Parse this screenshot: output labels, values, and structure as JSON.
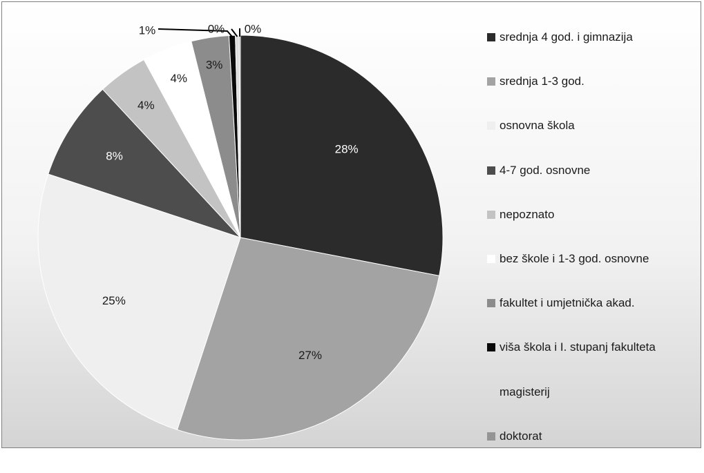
{
  "chart_data": {
    "type": "pie",
    "slices": [
      {
        "name": "srednja 4 god. i gimnazija",
        "value": 28,
        "label": "28%",
        "color": "#2b2b2b",
        "label_color": "#ffffff"
      },
      {
        "name": "srednja 1-3 god.",
        "value": 27,
        "label": "27%",
        "color": "#a3a3a3",
        "label_color": "#1a1a1a"
      },
      {
        "name": "osnovna škola",
        "value": 25,
        "label": "25%",
        "color": "#efefef",
        "label_color": "#1a1a1a"
      },
      {
        "name": "4-7 god. osnovne",
        "value": 8,
        "label": "8%",
        "color": "#4d4d4d",
        "label_color": "#ffffff"
      },
      {
        "name": "nepoznato",
        "value": 4,
        "label": "4%",
        "color": "#c3c3c3",
        "label_color": "#1a1a1a"
      },
      {
        "name": "bez škole i 1-3 god. osnovne",
        "value": 4,
        "label": "4%",
        "color": "#ffffff",
        "label_color": "#1a1a1a"
      },
      {
        "name": "fakultet i umjetnička akad.",
        "value": 3,
        "label": "3%",
        "color": "#8c8c8c",
        "label_color": "#1a1a1a"
      },
      {
        "name": "viša škola i I. stupanj fakulteta",
        "value": 0.5,
        "label": "1%",
        "color": "#0a0a0a",
        "label_color": "#1a1a1a"
      },
      {
        "name": "magisterij",
        "value": 0.3,
        "label": "0%",
        "color": "#dcdcdc",
        "label_color": "#1a1a1a"
      },
      {
        "name": "doktorat",
        "value": 0.1,
        "label": "0%",
        "color": "#959595",
        "label_color": "#1a1a1a"
      }
    ],
    "legend_position": "right",
    "start_angle": "top, clockwise"
  }
}
